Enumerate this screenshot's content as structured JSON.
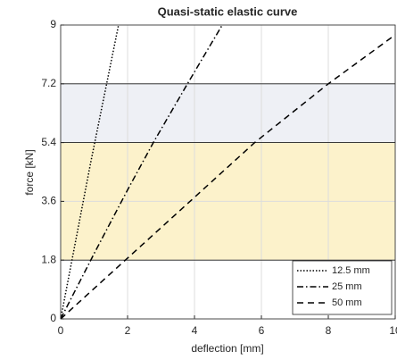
{
  "chart_data": {
    "type": "line",
    "title": "Quasi-static elastic curve",
    "x_label": "deflection [mm]",
    "y_label": "force [kN]",
    "xlim": [
      0,
      10
    ],
    "xticks": [
      0,
      2,
      4,
      6,
      8,
      10
    ],
    "ylim": [
      0,
      9
    ],
    "yticks": [
      0,
      1.8,
      3.6,
      5.4,
      7.2,
      9
    ],
    "grid": true,
    "legend": "lower right",
    "bands": [
      {
        "from": 1.8,
        "to": 5.4,
        "color": "#fcf2cb"
      },
      {
        "from": 5.4,
        "to": 7.2,
        "color": "#eef0f5"
      }
    ],
    "series": [
      {
        "name": "12.5 mm",
        "color": "#000000",
        "dash": "1.5 2",
        "x": [
          0,
          0.9,
          1.73
        ],
        "values": [
          0,
          4.8,
          9
        ]
      },
      {
        "name": "25 mm",
        "color": "#000000",
        "dash": "7 3 1.5 3",
        "x": [
          0,
          1,
          2,
          2.77,
          3.79,
          4.83
        ],
        "values": [
          0,
          2.0,
          3.95,
          5.4,
          7.2,
          9
        ]
      },
      {
        "name": "50 mm",
        "color": "#000000",
        "dash": "7 5",
        "x": [
          0,
          5.8,
          8,
          10
        ],
        "values": [
          0,
          5.4,
          7.2,
          8.7
        ]
      }
    ]
  }
}
